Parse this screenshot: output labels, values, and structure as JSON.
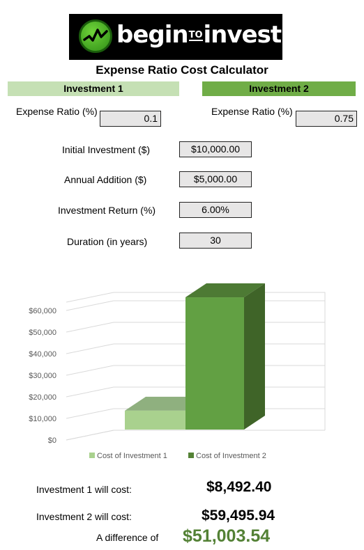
{
  "logo": {
    "begin": "begin",
    "to": "TO",
    "invest": "invest"
  },
  "title": "Expense Ratio Cost Calculator",
  "investment1": {
    "header": "Investment 1",
    "expense_ratio_label": "Expense Ratio (%)",
    "expense_ratio": "0.1"
  },
  "investment2": {
    "header": "Investment 2",
    "expense_ratio_label": "Expense Ratio (%)",
    "expense_ratio": "0.75"
  },
  "inputs": [
    {
      "label": "Initial Investment ($)",
      "value": "$10,000.00"
    },
    {
      "label": "Annual Addition ($)",
      "value": "$5,000.00"
    },
    {
      "label": "Investment Return (%)",
      "value": "6.00%"
    },
    {
      "label": "Duration (in years)",
      "value": "30"
    }
  ],
  "chart_data": {
    "type": "bar",
    "categories": [
      ""
    ],
    "series": [
      {
        "name": "Cost of Investment 1",
        "values": [
          8492.4
        ],
        "color": "#a9d18e"
      },
      {
        "name": "Cost of Investment 2",
        "values": [
          59495.94
        ],
        "color": "#548235"
      }
    ],
    "ylim": [
      0,
      60000
    ],
    "yticks": [
      "$0",
      "$10,000",
      "$20,000",
      "$30,000",
      "$40,000",
      "$50,000",
      "$60,000"
    ],
    "legend_position": "bottom",
    "grid": true,
    "style": "3d"
  },
  "results": {
    "inv1_label": "Investment 1 will cost:",
    "inv1_value": "$8,492.40",
    "inv2_label": "Investment 2 will cost:",
    "inv2_value": "$59,495.94",
    "diff_label": "A difference of",
    "diff_value": "$51,003.54"
  }
}
